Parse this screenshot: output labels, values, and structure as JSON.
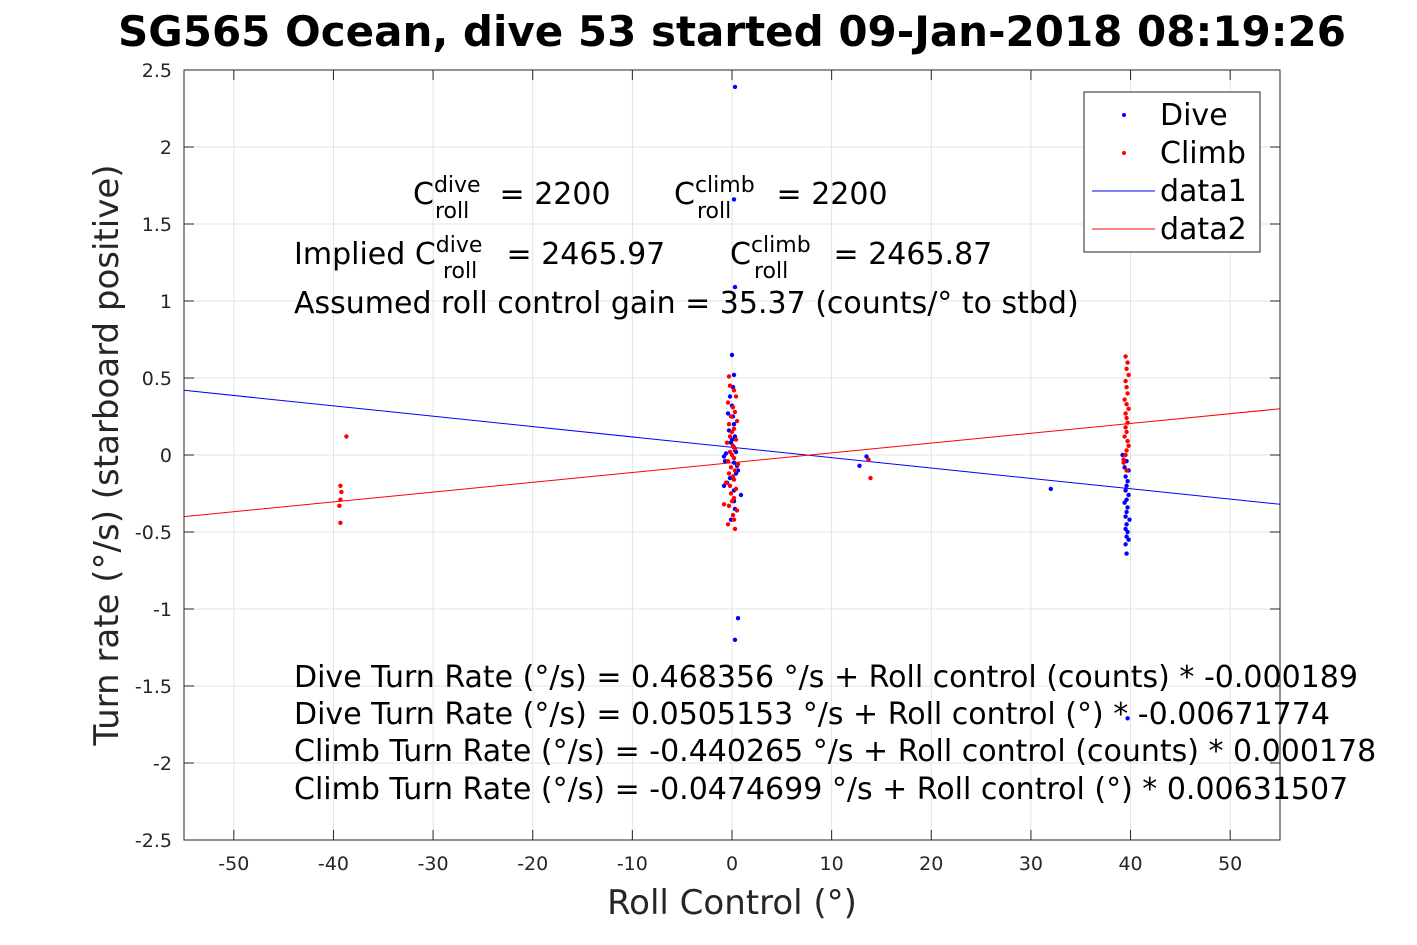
{
  "chart_data": {
    "type": "scatter",
    "title": "SG565 Ocean, dive 53 started 09-Jan-2018 08:19:26",
    "xlabel": "Roll Control (°)",
    "ylabel": "Turn rate (°/s) (starboard positive)",
    "xlim": [
      -55,
      55
    ],
    "ylim": [
      -2.5,
      2.5
    ],
    "grid": true,
    "legend_placement": "top-right",
    "x_ticks": [
      "-50",
      "-40",
      "-30",
      "-20",
      "-10",
      "0",
      "10",
      "20",
      "30",
      "40",
      "50"
    ],
    "y_ticks": [
      "2.5",
      "2",
      "1.5",
      "1",
      "0.5",
      "0",
      "-0.5",
      "-1",
      "-1.5",
      "-2",
      "-2.5"
    ],
    "series": [
      {
        "name": "Dive",
        "kind": "points",
        "color": "#0000ff",
        "x": [
          0.3,
          0.2,
          0.3,
          0.0,
          0.2,
          0.1,
          -0.2,
          0.0,
          -0.4,
          0.1,
          0.2,
          -0.3,
          0.3,
          0.0,
          -0.1,
          0.2,
          0.3,
          0.4,
          -0.6,
          -0.8,
          -0.7,
          0.2,
          0.5,
          0.6,
          0.4,
          -0.2,
          -0.5,
          -0.8,
          0.2,
          0.9,
          0.2,
          0.3,
          -0.1,
          0.6,
          0.3,
          12.8,
          13.5,
          32.0,
          39.2,
          39.6,
          39.4,
          39.8,
          39.5,
          39.7,
          39.6,
          39.5,
          39.8,
          39.6,
          39.4,
          39.7,
          39.6,
          39.5,
          39.9,
          39.6,
          39.5,
          39.7,
          39.6,
          39.8,
          39.5,
          39.6,
          39.7
        ],
        "y": [
          2.39,
          1.66,
          1.09,
          0.65,
          0.52,
          0.44,
          0.38,
          0.32,
          0.27,
          0.25,
          0.2,
          0.16,
          0.12,
          0.1,
          0.08,
          0.05,
          0.03,
          0.02,
          0.01,
          -0.01,
          -0.04,
          -0.05,
          -0.07,
          -0.1,
          -0.12,
          -0.15,
          -0.18,
          -0.2,
          -0.23,
          -0.26,
          -0.3,
          -0.35,
          -0.42,
          -1.06,
          -1.2,
          -0.07,
          -0.01,
          -0.22,
          0.0,
          -0.04,
          -0.08,
          -0.1,
          -0.14,
          -0.17,
          -0.2,
          -0.23,
          -0.26,
          -0.29,
          -0.31,
          -0.34,
          -0.37,
          -0.4,
          -0.42,
          -0.45,
          -0.48,
          -0.5,
          -0.53,
          -0.55,
          -0.58,
          -0.64,
          -1.71
        ]
      },
      {
        "name": "Climb",
        "kind": "points",
        "color": "#ff0000",
        "x": [
          -39.3,
          -39.2,
          -39.3,
          -39.4,
          -39.3,
          -38.7,
          -0.3,
          -0.2,
          0.2,
          0.4,
          -0.4,
          0.1,
          0.3,
          -0.1,
          0.5,
          -0.3,
          0.2,
          0.0,
          -0.2,
          0.4,
          -0.5,
          0.1,
          0.3,
          -0.2,
          0.0,
          0.2,
          -0.4,
          0.6,
          -0.1,
          0.3,
          -0.3,
          0.1,
          0.2,
          -0.6,
          -0.2,
          0.4,
          -0.1,
          0.2,
          0.0,
          -0.3,
          0.5,
          0.1,
          0.2,
          -0.4,
          -0.8,
          0.3,
          13.7,
          13.9,
          39.3,
          39.5,
          39.7,
          39.6,
          39.8,
          39.5,
          39.6,
          39.7,
          39.4,
          39.6,
          39.8,
          39.5,
          39.6,
          39.7,
          39.5,
          39.6,
          39.4,
          39.7,
          39.8,
          39.6,
          39.5,
          39.3,
          39.6
        ],
        "y": [
          -0.2,
          -0.24,
          -0.29,
          -0.33,
          -0.44,
          0.12,
          0.51,
          0.45,
          0.42,
          0.38,
          0.34,
          0.31,
          0.28,
          0.25,
          0.22,
          0.2,
          0.17,
          0.15,
          0.12,
          0.1,
          0.08,
          0.06,
          0.04,
          0.02,
          0.0,
          -0.02,
          -0.04,
          -0.06,
          -0.08,
          -0.1,
          -0.12,
          -0.14,
          -0.16,
          -0.18,
          -0.2,
          -0.22,
          -0.25,
          -0.28,
          -0.3,
          -0.33,
          -0.36,
          -0.39,
          -0.42,
          -0.45,
          -0.32,
          -0.48,
          -0.03,
          -0.15,
          -0.03,
          0.64,
          0.6,
          0.56,
          0.52,
          0.48,
          0.44,
          0.4,
          0.36,
          0.33,
          0.3,
          0.27,
          0.24,
          0.21,
          0.18,
          0.15,
          0.12,
          0.09,
          0.06,
          0.03,
          0.0,
          -0.05,
          -0.1
        ]
      },
      {
        "name": "data1",
        "kind": "line",
        "color": "#0000ff",
        "x": [
          -55,
          55
        ],
        "y": [
          0.42,
          -0.32
        ]
      },
      {
        "name": "data2",
        "kind": "line",
        "color": "#ff0000",
        "x": [
          -55,
          55
        ],
        "y": [
          -0.4,
          0.3
        ]
      }
    ],
    "annotations": {
      "c_roll": {
        "dive_prefix": "C",
        "dive_sup": "dive",
        "dive_sub": "roll",
        "dive_value": " = 2200",
        "climb_prefix": "C",
        "climb_sup": "climb",
        "climb_sub": "roll",
        "climb_value": " = 2200"
      },
      "implied": {
        "dive_prefix": "Implied C",
        "dive_sup": "dive",
        "dive_sub": "roll",
        "dive_value": " = 2465.97",
        "climb_prefix": "C",
        "climb_sup": "climb",
        "climb_sub": "roll",
        "climb_value": " = 2465.87"
      },
      "gain": "Assumed roll control gain = 35.37 (counts/° to stbd)",
      "equations": [
        "Dive Turn Rate (°/s) = 0.468356 °/s + Roll control (counts) * -0.000189",
        "Dive Turn Rate (°/s) = 0.0505153 °/s + Roll control (°) * -0.00671774",
        "Climb Turn Rate (°/s) = -0.440265 °/s + Roll control (counts) * 0.000178",
        "Climb Turn Rate (°/s) = -0.0474699 °/s + Roll control (°) * 0.00631507"
      ]
    }
  }
}
